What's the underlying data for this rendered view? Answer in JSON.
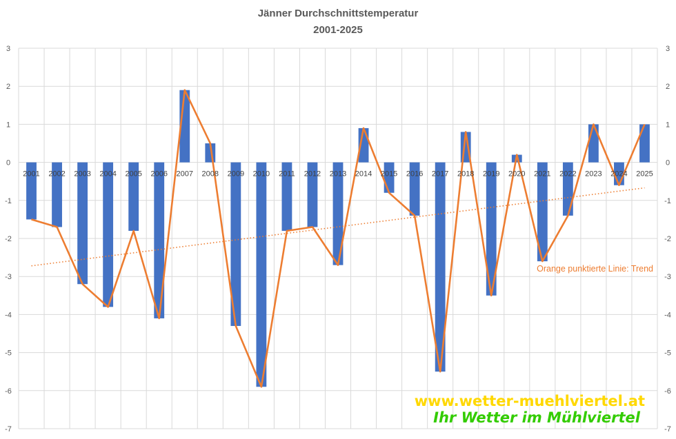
{
  "chart_data": {
    "type": "bar",
    "title": "Jänner Durchschnittstemperatur",
    "subtitle": "2001-2025",
    "categories": [
      "2001",
      "2002",
      "2003",
      "2004",
      "2005",
      "2006",
      "2007",
      "2008",
      "2009",
      "2010",
      "2011",
      "2012",
      "2013",
      "2014",
      "2015",
      "2016",
      "2017",
      "2018",
      "2019",
      "2020",
      "2021",
      "2022",
      "2023",
      "2024",
      "2025"
    ],
    "values": [
      -1.5,
      -1.7,
      -3.2,
      -3.8,
      -1.8,
      -4.1,
      1.9,
      0.5,
      -4.3,
      -5.9,
      -1.8,
      -1.7,
      -2.7,
      0.9,
      -0.8,
      -1.4,
      -5.5,
      0.8,
      -3.5,
      0.2,
      -2.6,
      -1.4,
      1.0,
      -0.6,
      1.0
    ],
    "ylim": [
      -7,
      3
    ],
    "yticks": [
      3,
      2,
      1,
      0,
      -1,
      -2,
      -3,
      -4,
      -5,
      -6,
      -7
    ],
    "xlabel": "",
    "ylabel": "",
    "grid": true,
    "bar_color": "#4472c4",
    "line_color": "#ed7d31",
    "overlay_line": "same values as bars",
    "trend": {
      "style": "dotted",
      "color": "#ed7d31",
      "start": -2.72,
      "end": -0.67
    },
    "annotation": "Orange punktierte Linie: Trend"
  },
  "watermark": {
    "url": "www.wetter-muehlviertel.at",
    "tagline": "Ihr Wetter im Mühlviertel",
    "url_color": "#ffd800",
    "tagline_color": "#33cc00"
  }
}
